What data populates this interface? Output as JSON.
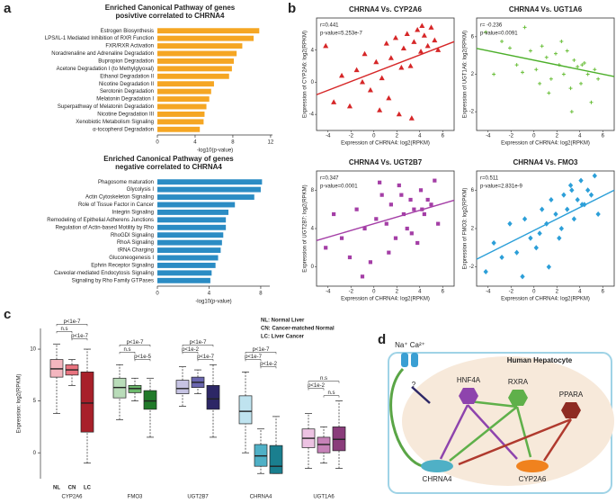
{
  "panel_labels": [
    "a",
    "b",
    "c",
    "d"
  ],
  "chart_data": [
    {
      "type": "bar",
      "orientation": "horizontal",
      "title": [
        "Enriched Canonical Pathway of genes",
        "posivtive correlated to CHRNA4"
      ],
      "categories": [
        "Estrogen Biosynthesis",
        "LPS/IL-1 Mediated Inhibition of RXR Function",
        "FXR/RXR Activation",
        "Noradrenaline and Adrenaline Degradation",
        "Bupropion Degradation",
        "Acetone Degradation I (to Methylglyoxal)",
        "Ethanol Degradation II",
        "Nicotine Degradation II",
        "Serotonin Degradation",
        "Melatonin Degradation I",
        "Superpathway of Melatonin Degradation",
        "Nicotine Degradation III",
        "Xenobiotic Metabolism Signaling",
        "α-tocopherol Degradation"
      ],
      "values": [
        10.8,
        10.2,
        9.0,
        8.4,
        8.1,
        7.9,
        7.6,
        6.0,
        5.7,
        5.5,
        5.2,
        5.0,
        4.9,
        4.5
      ],
      "label_colors": [
        "#222",
        "#222",
        "#222",
        "#222",
        "#222",
        "#222",
        "#222",
        "#d0262b",
        "#222",
        "#222",
        "#222",
        "#d0262b",
        "#222",
        "#222"
      ],
      "color": "#f5a623",
      "xlabel": "-log10(p-value)",
      "xlim": [
        0,
        12.2
      ],
      "xticks": [
        0,
        4,
        8,
        12
      ]
    },
    {
      "type": "bar",
      "orientation": "horizontal",
      "title": [
        "Enriched Canonical Pathway of genes",
        "negative correlated to CHRNA4"
      ],
      "categories": [
        "Phagosome maturation",
        "Glycolysis I",
        "Actin Cytoskeleton Signaling",
        "Role of Tissue Factor in Cancer",
        "Integrin Signaling",
        "Remodeling of Epithelial Adherens Junctions",
        "Regulation of Actin-based Motility by Rho",
        "RhoGDI Signaling",
        "RhoA Signaling",
        "tRNA Charging",
        "Gluconeogenesis I",
        "Ephrin Receptor Signaling",
        "Caveolar-mediated Endocytosis Signaling",
        "Signaling by Rho Family GTPases"
      ],
      "values": [
        8.1,
        8.0,
        7.5,
        6.0,
        5.5,
        5.3,
        5.3,
        5.1,
        5.0,
        4.9,
        4.7,
        4.5,
        4.2,
        4.1
      ],
      "label_colors": [
        "#222",
        "#222",
        "#222",
        "#222",
        "#222",
        "#222",
        "#222",
        "#222",
        "#222",
        "#222",
        "#222",
        "#222",
        "#222",
        "#222"
      ],
      "color": "#2b8cc4",
      "xlabel": "-log10(p-value)",
      "xlim": [
        0,
        8.7
      ],
      "xticks": [
        0,
        4,
        8
      ]
    },
    {
      "type": "scatter",
      "title": "CHRNA4 Vs. CYP2A6",
      "annotations": [
        "r=0.441",
        "p-value=5.253e-7"
      ],
      "xlabel": "Expression of CHRNA4: log2(RPKM)",
      "ylabel": "Expression of CYP2A6: log2(RPKM)",
      "color": "#d62728",
      "marker": "triangle",
      "line_color": "#d62728",
      "xlim": [
        -5,
        7
      ],
      "xticks": [
        -4,
        -2,
        0,
        2,
        4,
        6
      ],
      "ylim": [
        -6,
        8
      ],
      "yticks": [
        -4,
        0,
        4
      ],
      "x": [
        -4.2,
        -3.5,
        -2.8,
        -2.1,
        -1.5,
        -0.8,
        -0.3,
        0.2,
        0.7,
        1.1,
        1.5,
        1.9,
        2.2,
        2.6,
        2.9,
        3.2,
        3.5,
        3.8,
        4.1,
        4.4,
        4.7,
        5.0,
        5.3,
        5.6,
        1.3,
        2.4,
        3.3,
        4.2,
        -1.0,
        0.5
      ],
      "y": [
        4.5,
        -2.5,
        0.8,
        -3.0,
        1.5,
        3.5,
        -1.0,
        2.5,
        0.5,
        4.8,
        3.0,
        5.5,
        -4.0,
        4.2,
        6.0,
        2.0,
        5.0,
        6.5,
        3.8,
        5.8,
        4.5,
        6.8,
        5.2,
        4.0,
        -2.0,
        1.8,
        -4.5,
        7.0,
        0.0,
        -3.5
      ],
      "trend": {
        "x": [
          -5,
          7
        ],
        "y": [
          -1.55,
          5.05
        ]
      }
    },
    {
      "type": "scatter",
      "title": "CHRNA4 Vs. UGT1A6",
      "annotations": [
        "r= -0.236",
        "p-value=0.0091"
      ],
      "xlabel": "Expression of CHRNA4: log2(RPKM)",
      "ylabel": "Expression of UGT1A6: log2(RPKM)",
      "color": "#6abf3a",
      "marker": "plus",
      "line_color": "#4caf2a",
      "xlim": [
        -5,
        7
      ],
      "xticks": [
        -4,
        -2,
        0,
        2,
        4,
        6
      ],
      "ylim": [
        -4,
        8
      ],
      "yticks": [
        -2,
        2,
        6
      ],
      "x": [
        -4.2,
        -3.5,
        -2.8,
        -2.1,
        -1.5,
        -0.8,
        -0.3,
        0.2,
        0.7,
        1.1,
        1.5,
        1.9,
        2.2,
        2.6,
        2.9,
        3.2,
        3.5,
        3.8,
        4.1,
        4.4,
        4.7,
        5.0,
        5.3,
        5.6,
        1.3,
        2.4,
        3.3,
        4.2,
        -1.0,
        0.5
      ],
      "y": [
        6.5,
        2.0,
        5.5,
        4.8,
        3.0,
        7.0,
        4.5,
        2.5,
        5.0,
        3.8,
        1.5,
        4.2,
        3.0,
        2.0,
        4.5,
        0.5,
        3.5,
        2.8,
        1.0,
        3.2,
        2.0,
        -1.0,
        2.5,
        1.5,
        0.0,
        5.5,
        -2.0,
        3.0,
        2.2,
        1.0
      ],
      "trend": {
        "x": [
          -5,
          7
        ],
        "y": [
          4.75,
          1.75
        ]
      }
    },
    {
      "type": "scatter",
      "title": "CHRNA4 Vs. UGT2B7",
      "annotations": [
        "r=0.347",
        "p-value=0.0001"
      ],
      "xlabel": "Expression of CHRNA4: log2(RPKM)",
      "ylabel": "Expression of UGT2B7: log2(RPKM)",
      "color": "#a43ea6",
      "marker": "square",
      "line_color": "#a43ea6",
      "xlim": [
        -5,
        7
      ],
      "xticks": [
        -4,
        -2,
        0,
        2,
        4,
        6
      ],
      "ylim": [
        -2,
        10
      ],
      "yticks": [
        0,
        4,
        8
      ],
      "x": [
        -4.2,
        -3.5,
        -2.8,
        -2.1,
        -1.5,
        -0.8,
        -0.3,
        0.2,
        0.7,
        1.1,
        1.5,
        1.9,
        2.2,
        2.6,
        2.9,
        3.2,
        3.5,
        3.8,
        4.1,
        4.4,
        4.7,
        5.0,
        5.3,
        5.6,
        1.3,
        2.4,
        3.3,
        4.2,
        -1.0,
        0.5
      ],
      "y": [
        2.0,
        5.5,
        3.0,
        1.0,
        6.0,
        4.0,
        0.5,
        5.0,
        7.5,
        4.5,
        6.5,
        3.0,
        8.5,
        5.5,
        4.0,
        7.0,
        6.0,
        2.5,
        8.0,
        5.5,
        7.0,
        6.5,
        9.0,
        4.5,
        1.5,
        7.5,
        3.5,
        6.0,
        -1.0,
        8.8
      ],
      "trend": {
        "x": [
          -5,
          7
        ],
        "y": [
          2.75,
          6.95
        ]
      }
    },
    {
      "type": "scatter",
      "title": "CHRNA4 Vs. FMO3",
      "annotations": [
        "r=0.511",
        "p-value=2.831e-9"
      ],
      "xlabel": "Expression of CHRNA4: log2(RPKM)",
      "ylabel": "Expression of FMO3: log2(RPKM)",
      "color": "#2c9fd8",
      "marker": "diamond",
      "line_color": "#2c9fd8",
      "xlim": [
        -5,
        7
      ],
      "xticks": [
        -4,
        -2,
        0,
        2,
        4,
        6
      ],
      "ylim": [
        -4,
        8
      ],
      "yticks": [
        -2,
        2,
        6
      ],
      "x": [
        -4.2,
        -3.5,
        -2.8,
        -2.1,
        -1.5,
        -0.8,
        -0.3,
        0.2,
        0.7,
        1.1,
        1.5,
        1.9,
        2.2,
        2.6,
        2.9,
        3.2,
        3.5,
        3.8,
        4.1,
        4.4,
        4.7,
        5.0,
        5.3,
        5.6,
        1.3,
        2.4,
        3.3,
        4.2,
        -1.0,
        0.5
      ],
      "y": [
        -2.5,
        0.5,
        -1.0,
        2.5,
        -0.5,
        3.0,
        1.0,
        0.0,
        4.0,
        2.5,
        5.0,
        3.5,
        1.0,
        5.5,
        4.0,
        6.5,
        3.0,
        5.0,
        7.0,
        4.5,
        6.0,
        5.5,
        7.5,
        3.5,
        -2.0,
        2.0,
        6.0,
        4.5,
        -3.0,
        1.5
      ],
      "trend": {
        "x": [
          -5,
          7
        ],
        "y": [
          -1.2,
          6.0
        ]
      }
    },
    {
      "type": "box",
      "ylabel": "Expression: log2(RPKM)",
      "ylim": [
        -2.5,
        12
      ],
      "yticks": [
        0,
        5,
        10
      ],
      "group_labels": [
        "NL",
        "CN",
        "LC"
      ],
      "group_colors": [
        "#3a9a3a",
        "#d9a400",
        "#c0282a"
      ],
      "legend": [
        "NL: Normal Liver",
        "CN: Cancer-matched Normal",
        "LC: Liver Cancer"
      ],
      "genes": [
        {
          "name": "CYP2A6",
          "colors": [
            "#f4b6bf",
            "#e8737f",
            "#a8202a"
          ],
          "significance": [
            "p<1e-7",
            "n.s",
            "p<1e-7"
          ],
          "boxes": [
            {
              "whislo": 3.8,
              "q1": 7.3,
              "med": 8.1,
              "q3": 9.0,
              "whishi": 10.5
            },
            {
              "whislo": 6.5,
              "q1": 7.5,
              "med": 8.0,
              "q3": 8.5,
              "whishi": 9.0
            },
            {
              "whislo": -1,
              "q1": 2.0,
              "med": 4.8,
              "q3": 7.8,
              "whishi": 10
            }
          ]
        },
        {
          "name": "FMO3",
          "colors": [
            "#b9dcb9",
            "#6cb86c",
            "#217a2a"
          ],
          "significance": [
            "p<1e-7",
            "n.s",
            "p<1e-5"
          ],
          "boxes": [
            {
              "whislo": 3.2,
              "q1": 5.3,
              "med": 6.3,
              "q3": 7.2,
              "whishi": 8.5
            },
            {
              "whislo": 5,
              "q1": 5.8,
              "med": 6.2,
              "q3": 6.5,
              "whishi": 7.2
            },
            {
              "whislo": 1.5,
              "q1": 4.2,
              "med": 5.0,
              "q3": 6.0,
              "whishi": 7.2
            }
          ]
        },
        {
          "name": "UGT2B7",
          "colors": [
            "#c6c3e3",
            "#6b67b0",
            "#2d2766"
          ],
          "significance": [
            "p<1e-7",
            "p<1e-2",
            "p<1e-7"
          ],
          "boxes": [
            {
              "whislo": 4.5,
              "q1": 5.7,
              "med": 6.2,
              "q3": 7.0,
              "whishi": 8.3
            },
            {
              "whislo": 5.7,
              "q1": 6.3,
              "med": 6.8,
              "q3": 7.3,
              "whishi": 8
            },
            {
              "whislo": 1.5,
              "q1": 4.2,
              "med": 5.2,
              "q3": 6.5,
              "whishi": 8.5
            }
          ]
        },
        {
          "name": "CHRNA4",
          "colors": [
            "#bfe3ef",
            "#4fb0c6",
            "#1a7f8f"
          ],
          "significance": [
            "p<1e-7",
            "p<1e-7",
            "p<1e-2"
          ],
          "boxes": [
            {
              "whislo": 0,
              "q1": 2.8,
              "med": 4.0,
              "q3": 5.5,
              "whishi": 7.8
            },
            {
              "whislo": -2,
              "q1": -1.3,
              "med": -0.3,
              "q3": 0.8,
              "whishi": 2.3
            },
            {
              "whislo": -2,
              "q1": -2,
              "med": -1.3,
              "q3": 0.7,
              "whishi": 3.5
            }
          ]
        },
        {
          "name": "UGT1A6",
          "colors": [
            "#ecc2e2",
            "#c682b8",
            "#8a3c7b"
          ],
          "significance": [
            "n.s",
            "p<1e-2",
            "n.s"
          ],
          "boxes": [
            {
              "whislo": -1.5,
              "q1": 0.5,
              "med": 1.4,
              "q3": 2.3,
              "whishi": 3.8
            },
            {
              "whislo": -1,
              "q1": 0,
              "med": 0.8,
              "q3": 1.5,
              "whishi": 2.5
            },
            {
              "whislo": -1.5,
              "q1": 0.2,
              "med": 1.3,
              "q3": 2.5,
              "whishi": 5
            }
          ]
        }
      ]
    }
  ],
  "diagram": {
    "title": "Human Hepatocyte",
    "ions": "Na⁺ Ca²⁺",
    "question": "?",
    "nodes": [
      "HNF4A",
      "RXRA",
      "PPARA",
      "CHRNA4",
      "CYP2A6"
    ]
  }
}
